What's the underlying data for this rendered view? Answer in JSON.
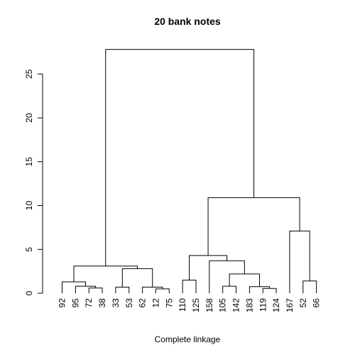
{
  "chart_data": {
    "type": "dendrogram",
    "title": "20 bank notes",
    "xlabel": "Complete linkage",
    "ylabel": "",
    "ylim": [
      0,
      28
    ],
    "yticks": [
      0,
      5,
      10,
      15,
      20,
      25
    ],
    "grid": false,
    "leaves": [
      "92",
      "95",
      "72",
      "38",
      "33",
      "53",
      "62",
      "12",
      "75",
      "110",
      "125",
      "158",
      "105",
      "142",
      "183",
      "119",
      "124",
      "167",
      "52",
      "66"
    ],
    "merges": [
      {
        "left": "L:72",
        "right": "L:38",
        "height": 0.6
      },
      {
        "left": "L:12",
        "right": "L:75",
        "height": 0.5
      },
      {
        "left": "L:105",
        "right": "L:142",
        "height": 0.8
      },
      {
        "left": "L:119",
        "right": "L:124",
        "height": 0.55
      },
      {
        "left": "L:183",
        "right": "M:3",
        "height": 0.75
      },
      {
        "left": "L:95",
        "right": "M:0",
        "height": 0.8
      },
      {
        "left": "L:33",
        "right": "L:53",
        "height": 0.7
      },
      {
        "left": "L:62",
        "right": "M:1",
        "height": 0.7
      },
      {
        "left": "L:92",
        "right": "M:5",
        "height": 1.3
      },
      {
        "left": "L:52",
        "right": "L:66",
        "height": 1.4
      },
      {
        "left": "L:110",
        "right": "L:125",
        "height": 1.5
      },
      {
        "left": "M:2",
        "right": "M:4",
        "height": 2.2
      },
      {
        "left": "M:6",
        "right": "M:7",
        "height": 2.8
      },
      {
        "left": "M:8",
        "right": "M:12",
        "height": 3.1
      },
      {
        "left": "L:158",
        "right": "M:11",
        "height": 3.7
      },
      {
        "left": "M:10",
        "right": "M:14",
        "height": 4.3
      },
      {
        "left": "L:167",
        "right": "M:9",
        "height": 7.1
      },
      {
        "left": "M:15",
        "right": "M:16",
        "height": 10.9
      },
      {
        "left": "M:13",
        "right": "M:17",
        "height": 27.8
      }
    ]
  }
}
